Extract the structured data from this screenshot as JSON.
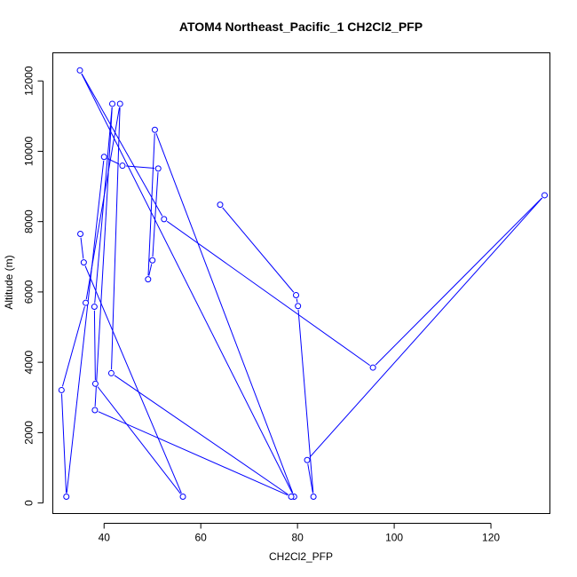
{
  "chart_data": {
    "type": "line",
    "title": "ATOM4 Northeast_Pacific_1 CH2Cl2_PFP",
    "xlabel": "CH2Cl2_PFP",
    "ylabel": "Altitude (m)",
    "xlim": [
      29.4,
      132.2
    ],
    "ylim": [
      -300,
      12800
    ],
    "x_ticks": [
      40,
      60,
      80,
      100,
      120
    ],
    "y_ticks": [
      0,
      2000,
      4000,
      6000,
      8000,
      10000,
      12000
    ],
    "grid": false,
    "legend": "none",
    "series_color": "#0000ff",
    "series": [
      {
        "points": [
          {
            "x": 64.0,
            "y": 8480
          },
          {
            "x": 79.7,
            "y": 5910
          },
          {
            "x": 80.1,
            "y": 5600
          },
          {
            "x": 83.3,
            "y": 180
          },
          {
            "x": 82.0,
            "y": 1220
          },
          {
            "x": 131.1,
            "y": 8750
          },
          {
            "x": 95.6,
            "y": 3850
          },
          {
            "x": 52.4,
            "y": 8070
          },
          {
            "x": 35.0,
            "y": 12300
          },
          {
            "x": 79.3,
            "y": 180
          },
          {
            "x": 50.5,
            "y": 10610
          },
          {
            "x": 49.1,
            "y": 6360
          },
          {
            "x": 50.0,
            "y": 6900
          },
          {
            "x": 51.2,
            "y": 9510
          },
          {
            "x": 43.8,
            "y": 9590
          },
          {
            "x": 40.0,
            "y": 9840
          },
          {
            "x": 32.2,
            "y": 180
          },
          {
            "x": 31.2,
            "y": 3210
          },
          {
            "x": 36.2,
            "y": 5690
          },
          {
            "x": 43.3,
            "y": 11350
          },
          {
            "x": 41.5,
            "y": 3690
          },
          {
            "x": 78.7,
            "y": 180
          },
          {
            "x": 38.1,
            "y": 2640
          },
          {
            "x": 41.7,
            "y": 11350
          },
          {
            "x": 38.0,
            "y": 5580
          },
          {
            "x": 38.2,
            "y": 3390
          },
          {
            "x": 56.3,
            "y": 180
          },
          {
            "x": 35.8,
            "y": 6840
          },
          {
            "x": 35.1,
            "y": 7650
          }
        ]
      }
    ]
  }
}
